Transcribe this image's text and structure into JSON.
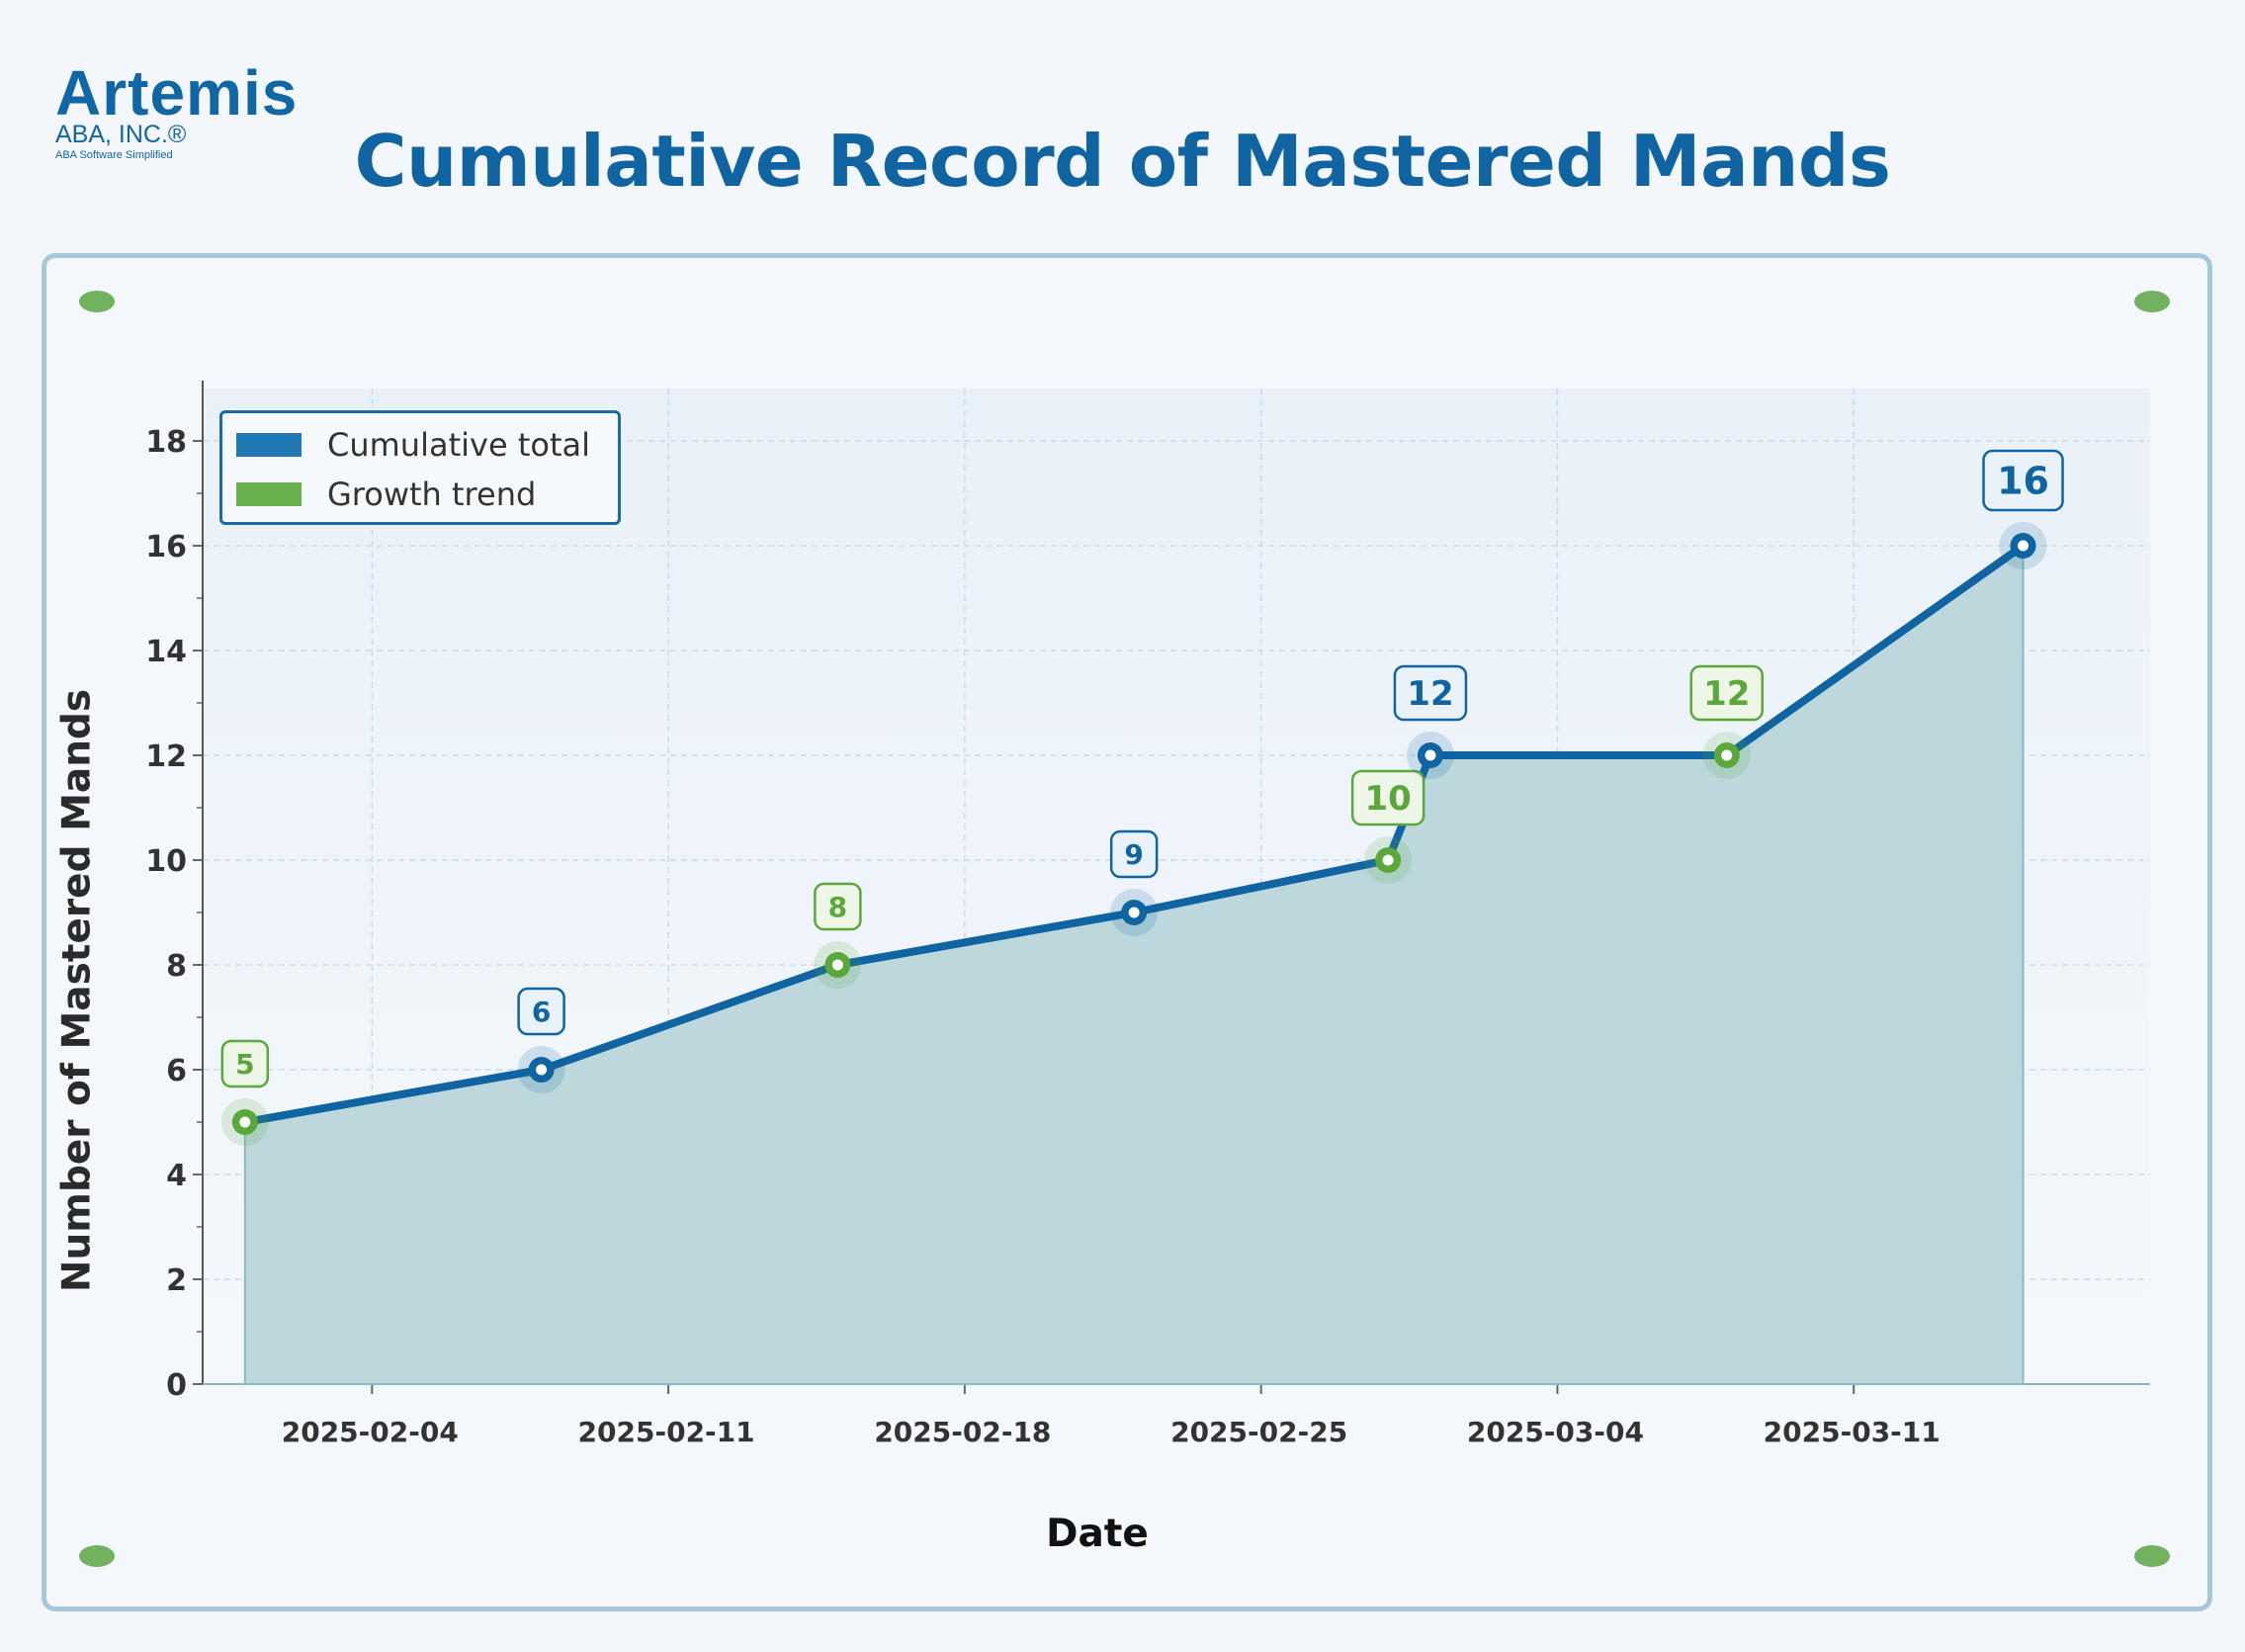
{
  "logo": {
    "word": "Artemis",
    "sub": "ABA, INC.®",
    "tagline": "ABA Software Simplified"
  },
  "colors": {
    "primary": "#0f64a1",
    "green": "#5aa83b",
    "fill": "#bcd8dd",
    "frame": "#a6c8dc"
  },
  "chart_data": {
    "type": "area",
    "title": "Cumulative Record of Mastered Mands",
    "xlabel": "Date",
    "ylabel": "Number of Mastered Mands",
    "ylim": [
      0,
      19
    ],
    "xlim": [
      "2025-01-31",
      "2025-03-18"
    ],
    "y_ticks": [
      "0",
      "2",
      "4",
      "6",
      "8",
      "10",
      "12",
      "14",
      "16",
      "18"
    ],
    "x_ticks": [
      "2025-02-04",
      "2025-02-11",
      "2025-02-18",
      "2025-02-25",
      "2025-03-04",
      "2025-03-11"
    ],
    "grid": true,
    "legend": {
      "placement": "top-left",
      "entries": [
        {
          "label": "Cumulative total",
          "color": "#1f77b4"
        },
        {
          "label": "Growth trend",
          "color": "#6ab04c"
        }
      ]
    },
    "points": [
      {
        "x": "2025-02-01",
        "y": 5,
        "label": "5",
        "style": "green"
      },
      {
        "x": "2025-02-08",
        "y": 6,
        "label": "6",
        "style": "blue"
      },
      {
        "x": "2025-02-15",
        "y": 8,
        "label": "8",
        "style": "green"
      },
      {
        "x": "2025-02-22",
        "y": 9,
        "label": "9",
        "style": "blue"
      },
      {
        "x": "2025-02-28",
        "y": 10,
        "label": "10",
        "style": "green"
      },
      {
        "x": "2025-03-01",
        "y": 12,
        "label": "12",
        "style": "blue"
      },
      {
        "x": "2025-03-08",
        "y": 12,
        "label": "12",
        "style": "green"
      },
      {
        "x": "2025-03-15",
        "y": 16,
        "label": "16",
        "style": "blue"
      }
    ]
  }
}
